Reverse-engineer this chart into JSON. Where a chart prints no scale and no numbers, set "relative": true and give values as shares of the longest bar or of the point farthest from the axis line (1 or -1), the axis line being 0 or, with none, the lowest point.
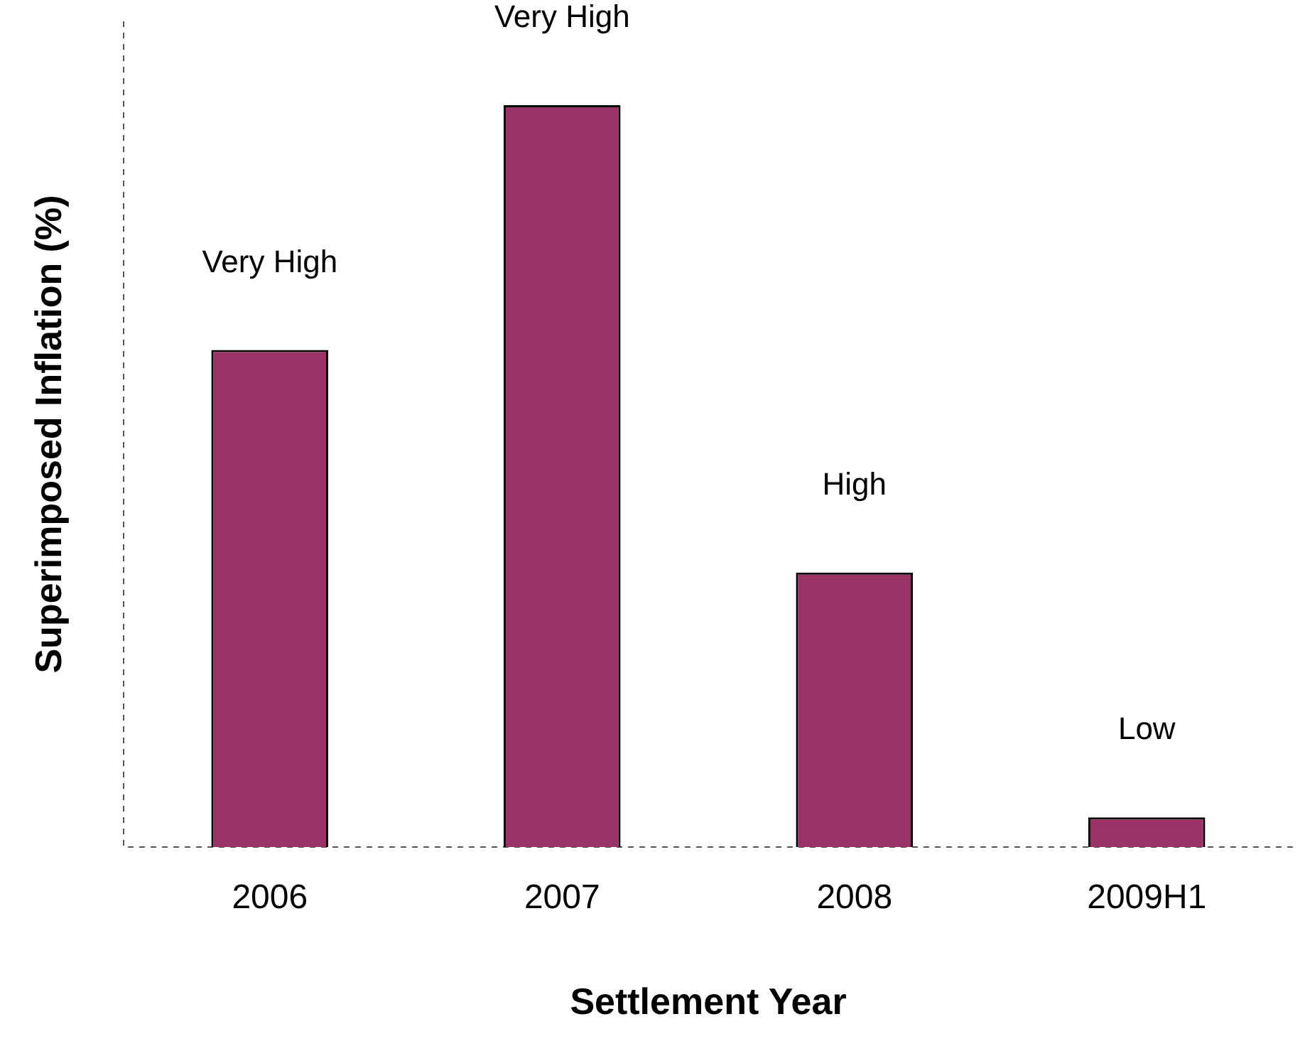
{
  "chart_data": {
    "type": "bar",
    "relative": true,
    "xlabel": "Settlement Year",
    "ylabel": "Superimposed Inflation (%)",
    "categories": [
      "2006",
      "2007",
      "2008",
      "2009H1"
    ],
    "values": [
      0.67,
      1,
      0.37,
      0.04
    ],
    "annotations": [
      {
        "text": "Very High",
        "x": "2006",
        "y": 0.67
      },
      {
        "text": "Very High",
        "x": "2007",
        "y": 1
      },
      {
        "text": "High",
        "x": "2008",
        "y": 0.37
      },
      {
        "text": "Low",
        "x": "2009H1",
        "y": 0.04
      }
    ],
    "color": "#993366",
    "grid": false,
    "legend": false
  }
}
